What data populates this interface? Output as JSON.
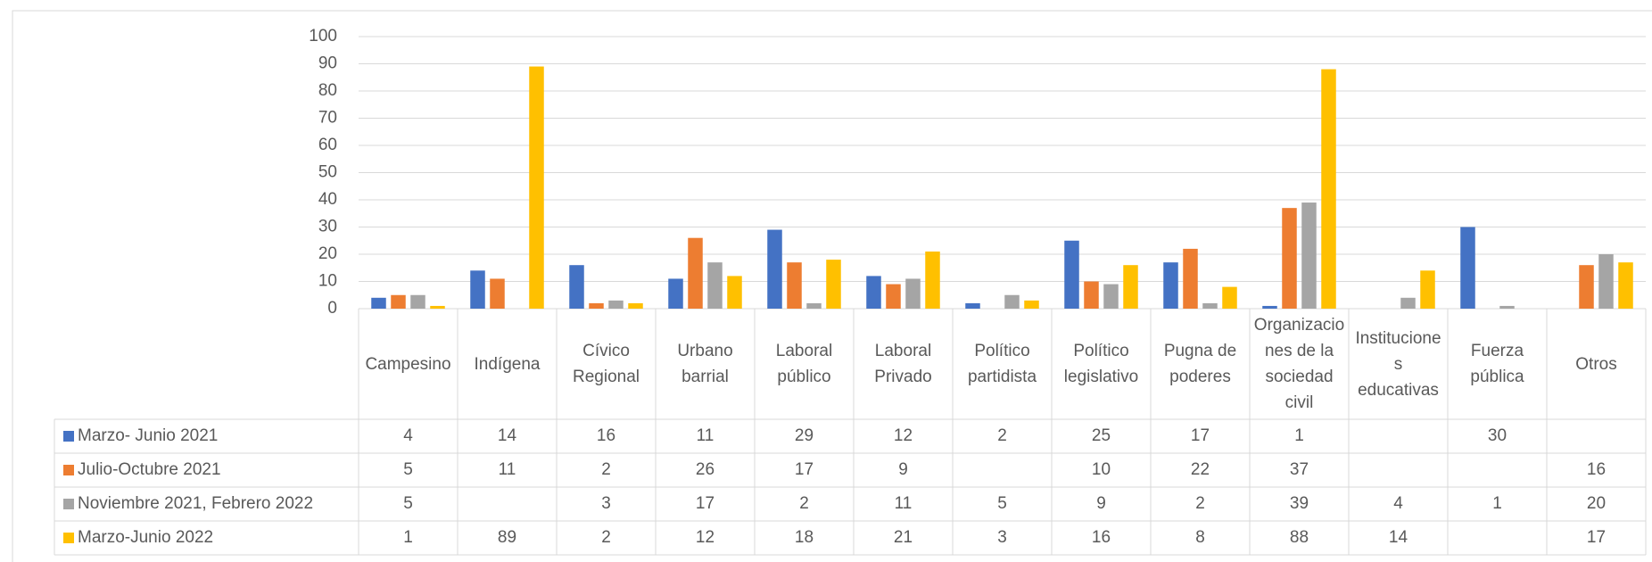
{
  "chart_data": {
    "type": "bar",
    "categories": [
      "Campesino",
      "Indígena",
      "Cívico Regional",
      "Urbano barrial",
      "Laboral público",
      "Laboral Privado",
      "Político partidista",
      "Político legislativo",
      "Pugna de poderes",
      "Organizaciones de la sociedad civil",
      "Instituciones educativas",
      "Fuerza pública",
      "Otros"
    ],
    "series": [
      {
        "name": "Marzo- Junio 2021",
        "color": "#4472c4",
        "values": [
          4,
          14,
          16,
          11,
          29,
          12,
          2,
          25,
          17,
          1,
          null,
          30,
          null
        ]
      },
      {
        "name": "Julio-Octubre 2021",
        "color": "#ed7d31",
        "values": [
          5,
          11,
          2,
          26,
          17,
          9,
          null,
          10,
          22,
          37,
          null,
          null,
          16
        ]
      },
      {
        "name": "Noviembre 2021, Febrero 2022",
        "color": "#a5a5a5",
        "values": [
          5,
          null,
          3,
          17,
          2,
          11,
          5,
          9,
          2,
          39,
          4,
          1,
          20
        ]
      },
      {
        "name": "Marzo-Junio 2022",
        "color": "#ffc000",
        "values": [
          1,
          89,
          2,
          12,
          18,
          21,
          3,
          16,
          8,
          88,
          14,
          null,
          17
        ]
      }
    ],
    "ylim": [
      0,
      100
    ],
    "yticks": [
      0,
      10,
      20,
      30,
      40,
      50,
      60,
      70,
      80,
      90,
      100
    ],
    "grid": true,
    "legend": "data-table"
  }
}
